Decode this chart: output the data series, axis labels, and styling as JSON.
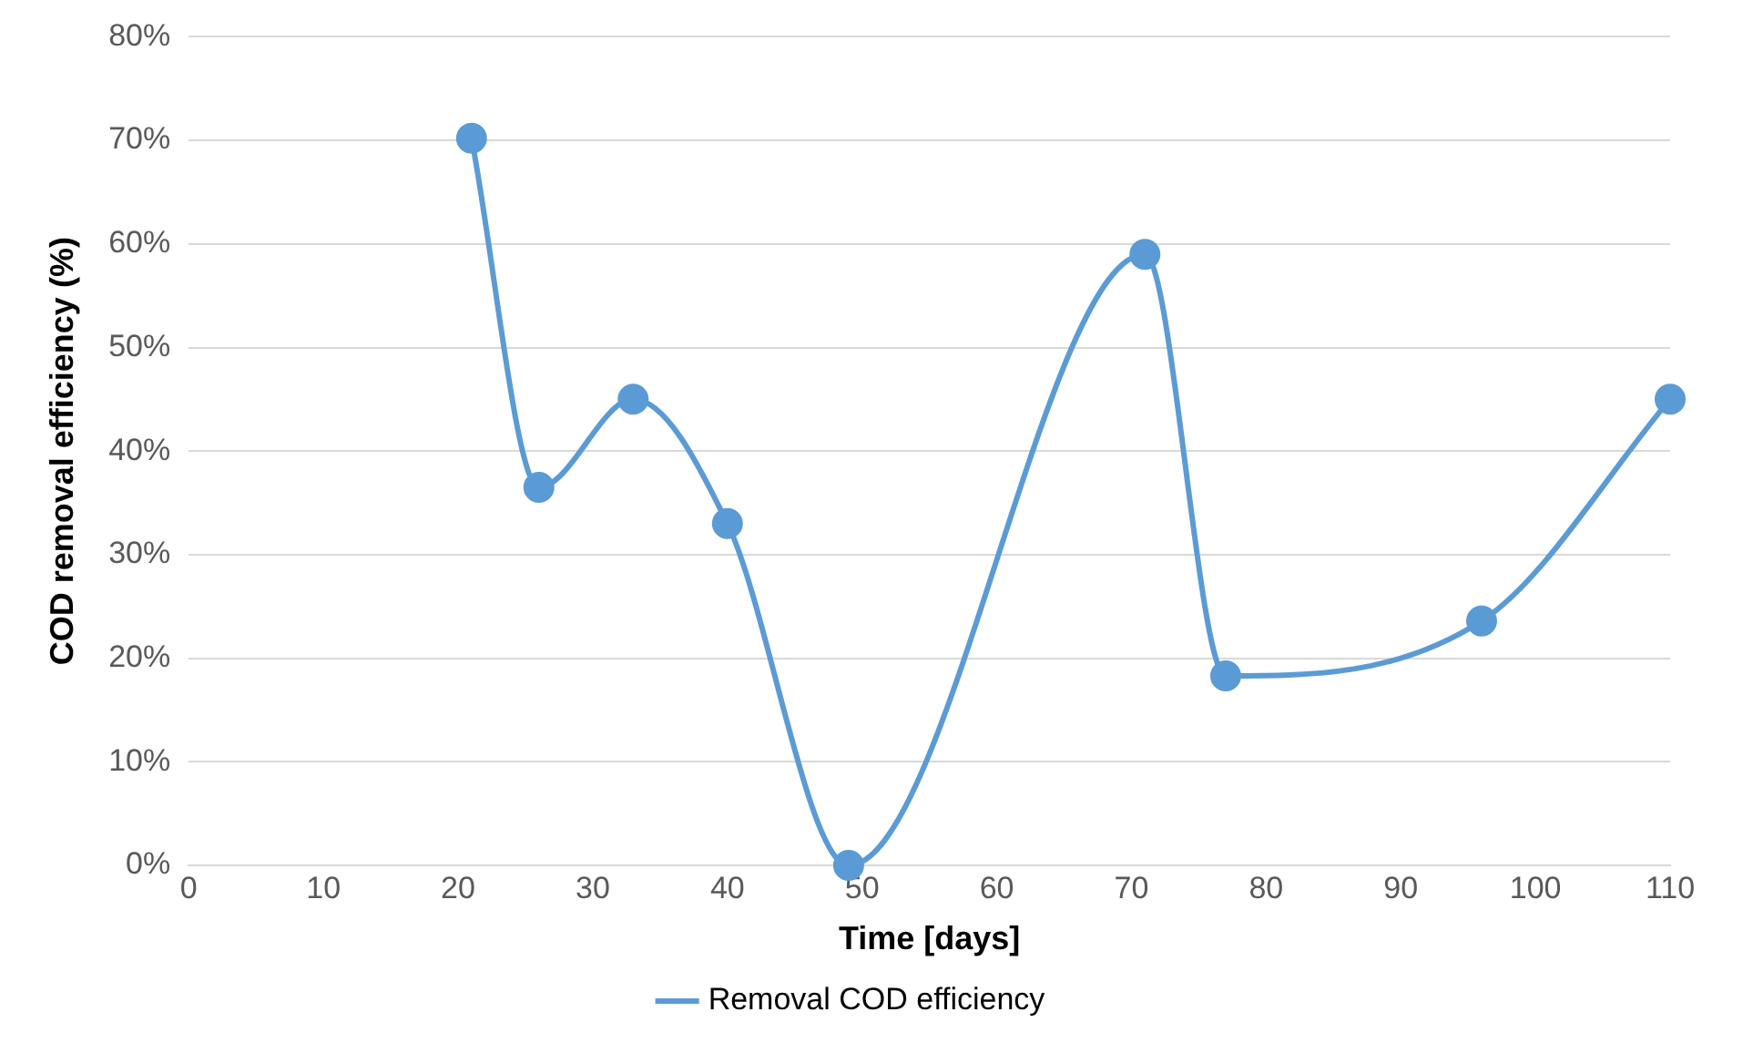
{
  "chart_data": {
    "type": "line",
    "xlabel": "Time [days]",
    "ylabel": "COD removal efficiency (%)",
    "x": [
      21,
      26,
      33,
      40,
      49,
      71,
      77,
      96,
      110
    ],
    "series": [
      {
        "name": "Removal COD efficiency",
        "color": "#5b9bd5",
        "values": [
          70.2,
          36.5,
          45,
          33,
          0,
          59,
          18.3,
          23.6,
          45
        ]
      }
    ],
    "xlim": [
      0,
      110
    ],
    "xticks": [
      0,
      10,
      20,
      30,
      40,
      50,
      60,
      70,
      80,
      90,
      100,
      110
    ],
    "ylim": [
      0,
      80
    ],
    "yticks": [
      {
        "value": 0,
        "label": "0%"
      },
      {
        "value": 10,
        "label": "10%"
      },
      {
        "value": 20,
        "label": "20%"
      },
      {
        "value": 30,
        "label": "30%"
      },
      {
        "value": 40,
        "label": "40%"
      },
      {
        "value": 50,
        "label": "50%"
      },
      {
        "value": 60,
        "label": "60%"
      },
      {
        "value": 70,
        "label": "70%"
      },
      {
        "value": 80,
        "label": "80%"
      }
    ],
    "grid": "y",
    "legend": "bottom",
    "marker": "circle",
    "line_style": "solid"
  }
}
